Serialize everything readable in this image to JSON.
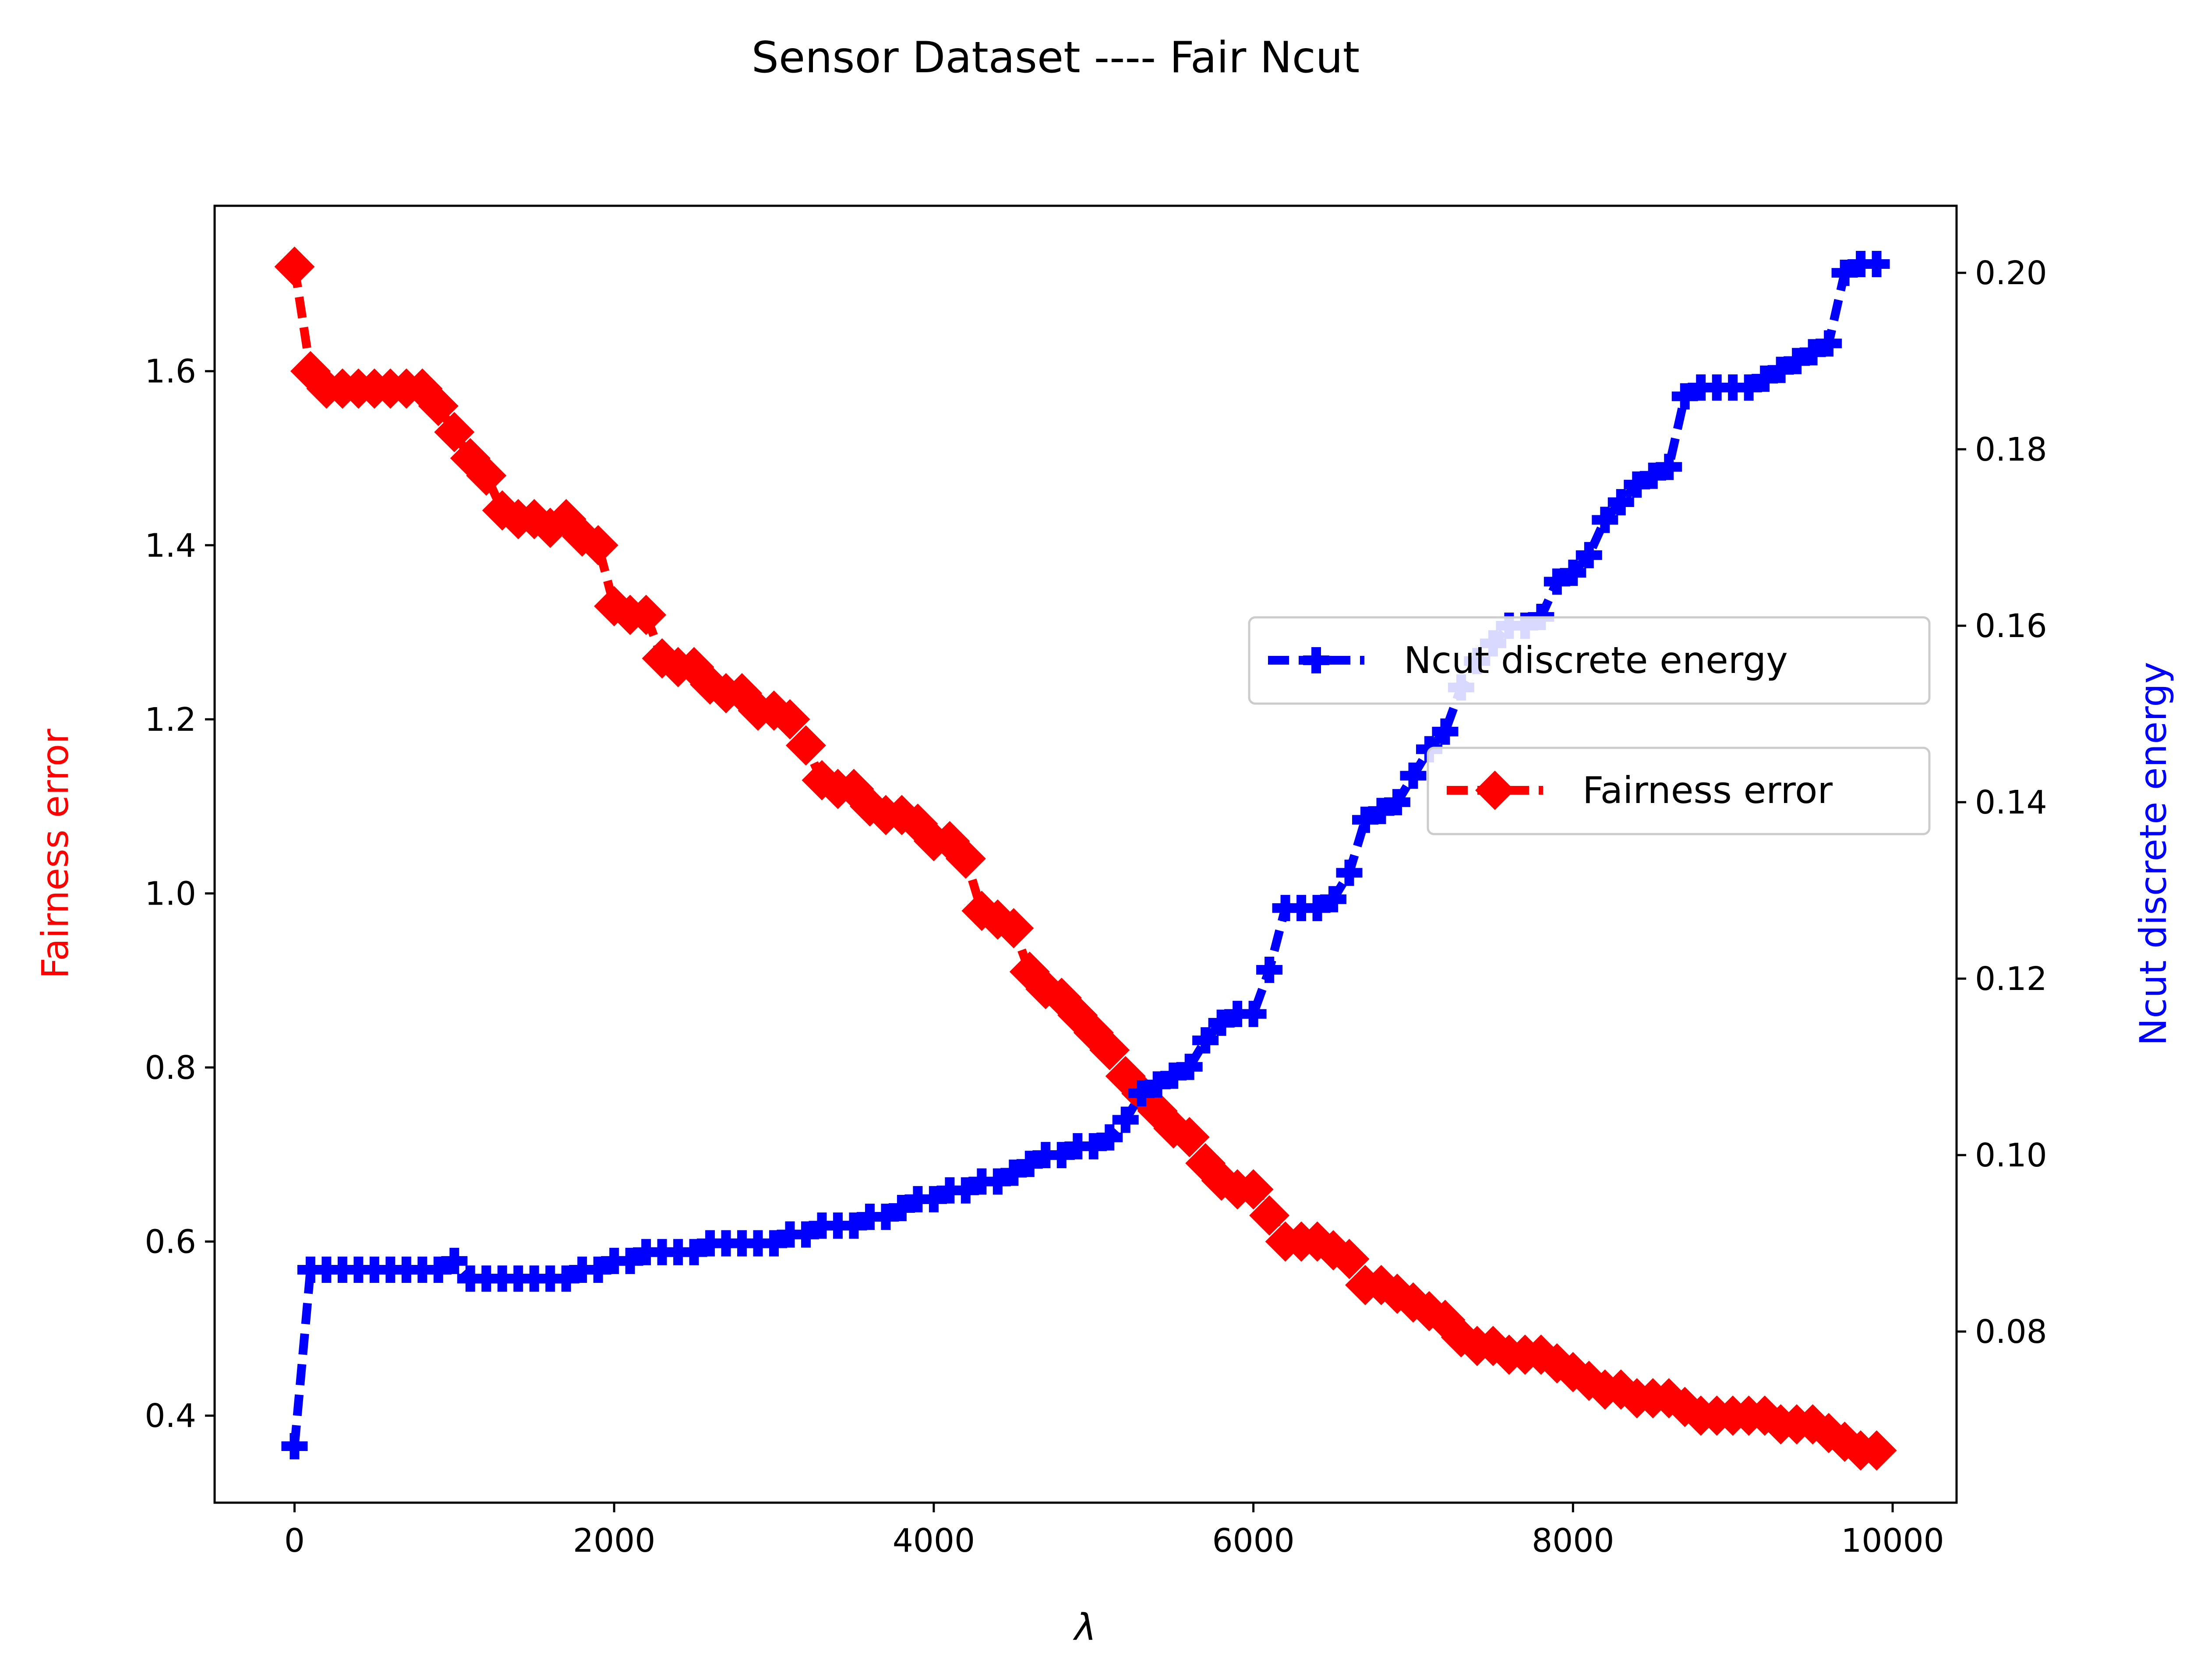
{
  "chart_data": {
    "type": "line",
    "title": "Sensor Dataset ---- Fair Ncut",
    "xlabel": "λ",
    "ylabel_left": "Fairness error",
    "ylabel_right": "Ncut discrete energy",
    "xlim": [
      -500,
      10400
    ],
    "ylim_left": [
      0.3,
      1.79
    ],
    "ylim_right": [
      0.0606,
      0.2076
    ],
    "x_ticks": [
      0,
      2000,
      4000,
      6000,
      8000,
      10000
    ],
    "y_left_ticks": [
      0.4,
      0.6,
      0.8,
      1.0,
      1.2,
      1.4,
      1.6
    ],
    "y_right_ticks": [
      0.08,
      0.1,
      0.12,
      0.14,
      0.16,
      0.18,
      0.2
    ],
    "y_left_tick_labels": [
      "0.4",
      "0.6",
      "0.8",
      "1.0",
      "1.2",
      "1.4",
      "1.6"
    ],
    "y_right_tick_labels": [
      "0.08",
      "0.10",
      "0.12",
      "0.14",
      "0.16",
      "0.18",
      "0.20"
    ],
    "grid": false,
    "legend": [
      {
        "name": "Ncut discrete energy",
        "position": "center-right upper"
      },
      {
        "name": "Fairness error",
        "position": "center-right lower"
      }
    ],
    "colors": {
      "fairness": "#ff0000",
      "ncut": "#0000ff"
    },
    "series": [
      {
        "name": "Fairness error",
        "axis": "left",
        "marker": "diamond",
        "linestyle": "dashed",
        "x": [
          0,
          100,
          200,
          300,
          400,
          500,
          600,
          700,
          800,
          900,
          1000,
          1100,
          1200,
          1300,
          1400,
          1500,
          1600,
          1700,
          1800,
          1900,
          2000,
          2100,
          2200,
          2300,
          2400,
          2500,
          2600,
          2700,
          2800,
          2900,
          3000,
          3100,
          3200,
          3300,
          3400,
          3500,
          3600,
          3700,
          3800,
          3900,
          4000,
          4100,
          4200,
          4300,
          4400,
          4500,
          4600,
          4700,
          4800,
          4900,
          5000,
          5100,
          5200,
          5300,
          5400,
          5500,
          5600,
          5700,
          5800,
          5900,
          6000,
          6100,
          6200,
          6300,
          6400,
          6500,
          6600,
          6700,
          6800,
          6900,
          7000,
          7100,
          7200,
          7300,
          7400,
          7500,
          7600,
          7700,
          7800,
          7900,
          8000,
          8100,
          8200,
          8300,
          8400,
          8500,
          8600,
          8700,
          8800,
          8900,
          9000,
          9100,
          9200,
          9300,
          9400,
          9500,
          9600,
          9700,
          9800,
          9900
        ],
        "values": [
          1.72,
          1.6,
          1.58,
          1.58,
          1.58,
          1.58,
          1.58,
          1.58,
          1.58,
          1.56,
          1.53,
          1.5,
          1.48,
          1.44,
          1.43,
          1.43,
          1.42,
          1.43,
          1.41,
          1.4,
          1.33,
          1.32,
          1.32,
          1.27,
          1.26,
          1.26,
          1.24,
          1.23,
          1.23,
          1.21,
          1.21,
          1.2,
          1.17,
          1.13,
          1.12,
          1.12,
          1.1,
          1.09,
          1.09,
          1.08,
          1.06,
          1.06,
          1.04,
          0.98,
          0.97,
          0.96,
          0.91,
          0.89,
          0.88,
          0.86,
          0.84,
          0.82,
          0.79,
          0.77,
          0.75,
          0.73,
          0.72,
          0.69,
          0.67,
          0.66,
          0.66,
          0.63,
          0.6,
          0.6,
          0.6,
          0.59,
          0.58,
          0.55,
          0.55,
          0.54,
          0.53,
          0.52,
          0.51,
          0.49,
          0.48,
          0.48,
          0.47,
          0.47,
          0.47,
          0.46,
          0.45,
          0.44,
          0.43,
          0.43,
          0.42,
          0.42,
          0.42,
          0.41,
          0.4,
          0.4,
          0.4,
          0.4,
          0.4,
          0.39,
          0.39,
          0.39,
          0.38,
          0.37,
          0.36,
          0.36
        ]
      },
      {
        "name": "Ncut discrete energy",
        "axis": "right",
        "marker": "plus",
        "linestyle": "dashed",
        "x": [
          0,
          100,
          200,
          300,
          400,
          500,
          600,
          700,
          800,
          900,
          1000,
          1100,
          1200,
          1300,
          1400,
          1500,
          1600,
          1700,
          1800,
          1900,
          2000,
          2100,
          2200,
          2300,
          2400,
          2500,
          2600,
          2700,
          2800,
          2900,
          3000,
          3100,
          3200,
          3300,
          3400,
          3500,
          3600,
          3700,
          3800,
          3900,
          4000,
          4100,
          4200,
          4300,
          4400,
          4500,
          4600,
          4700,
          4800,
          4900,
          5000,
          5100,
          5200,
          5300,
          5400,
          5500,
          5600,
          5700,
          5800,
          5900,
          6000,
          6100,
          6200,
          6300,
          6400,
          6500,
          6600,
          6700,
          6800,
          6900,
          7000,
          7100,
          7200,
          7300,
          7400,
          7500,
          7600,
          7700,
          7800,
          7900,
          8000,
          8100,
          8200,
          8300,
          8400,
          8500,
          8600,
          8700,
          8800,
          8900,
          9000,
          9100,
          9200,
          9300,
          9400,
          9500,
          9600,
          9700,
          9800,
          9900
        ],
        "values": [
          0.067,
          0.087,
          0.087,
          0.087,
          0.087,
          0.087,
          0.087,
          0.087,
          0.087,
          0.087,
          0.088,
          0.086,
          0.086,
          0.086,
          0.086,
          0.086,
          0.086,
          0.086,
          0.087,
          0.087,
          0.088,
          0.088,
          0.089,
          0.089,
          0.089,
          0.089,
          0.09,
          0.09,
          0.09,
          0.09,
          0.09,
          0.091,
          0.091,
          0.092,
          0.092,
          0.092,
          0.093,
          0.093,
          0.094,
          0.095,
          0.095,
          0.096,
          0.096,
          0.097,
          0.097,
          0.098,
          0.099,
          0.1,
          0.1,
          0.101,
          0.101,
          0.102,
          0.104,
          0.107,
          0.108,
          0.109,
          0.11,
          0.113,
          0.115,
          0.116,
          0.116,
          0.121,
          0.128,
          0.128,
          0.128,
          0.129,
          0.132,
          0.138,
          0.139,
          0.14,
          0.143,
          0.146,
          0.148,
          0.153,
          0.156,
          0.158,
          0.16,
          0.16,
          0.161,
          0.165,
          0.166,
          0.168,
          0.172,
          0.174,
          0.176,
          0.177,
          0.178,
          0.186,
          0.187,
          0.187,
          0.187,
          0.187,
          0.188,
          0.189,
          0.19,
          0.191,
          0.192,
          0.2,
          0.201,
          0.201
        ]
      }
    ]
  }
}
